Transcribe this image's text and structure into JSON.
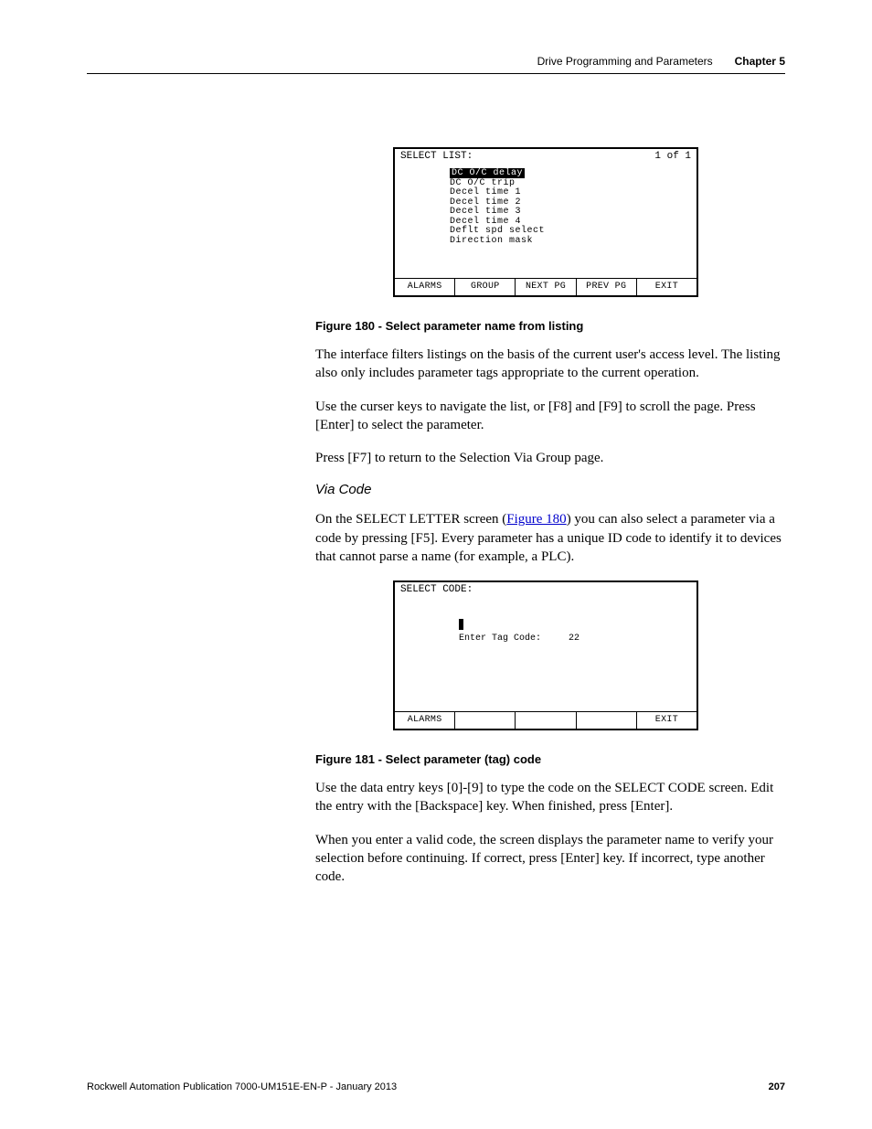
{
  "header": {
    "section": "Drive Programming and Parameters",
    "chapter": "Chapter 5"
  },
  "terminal1": {
    "title": "SELECT LIST:",
    "page_ind": "1 of  1",
    "row_highlight": "DC O/C delay",
    "rows": [
      "DC O/C trip",
      "Decel time 1",
      "Decel time 2",
      "Decel time 3",
      "Decel time 4",
      "Deflt spd select",
      "Direction mask"
    ],
    "footer": [
      "ALARMS",
      "GROUP",
      "NEXT PG",
      "PREV PG",
      "EXIT"
    ]
  },
  "figure1_caption": "Figure 180 - Select parameter name from listing",
  "para1": "The interface filters listings on the basis of the current user's access level. The listing also only includes parameter tags appropriate to the current operation.",
  "para2": "Use the curser keys to navigate the list, or [F8] and [F9] to scroll the page. Press [Enter] to select the parameter.",
  "para3": "Press [F7] to return to the Selection Via Group page.",
  "subheading": "Via Code",
  "para4_a": "On the SELECT LETTER screen (",
  "para4_link": "Figure 180",
  "para4_b": ") you can also select a parameter via a code by pressing [F5]. Every parameter has a unique ID code to identify it to devices that cannot parse a name (for example, a PLC).",
  "terminal2": {
    "title": "SELECT CODE:",
    "prompt": "Enter Tag Code:",
    "value": "22",
    "footer_left": "ALARMS",
    "footer_right": "EXIT"
  },
  "figure2_caption": "Figure 181 - Select parameter (tag) code",
  "para5": "Use the data entry keys [0]-[9] to type the code on the SELECT CODE screen. Edit the entry with the [Backspace] key. When finished, press [Enter].",
  "para6": "When you enter a valid code, the screen displays the parameter name to verify your selection before continuing. If correct, press [Enter] key. If incorrect, type another code.",
  "footer": {
    "pub": "Rockwell Automation Publication 7000-UM151E-EN-P - January 2013",
    "page": "207"
  }
}
